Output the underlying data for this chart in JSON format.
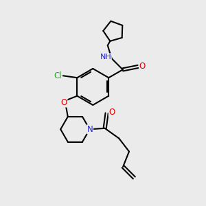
{
  "background_color": "#ebebeb",
  "bond_color": "#000000",
  "atom_colors": {
    "N": "#2222dd",
    "O": "#dd0000",
    "Cl": "#22aa22",
    "H": "#888888",
    "C": "#000000"
  },
  "figsize": [
    3.0,
    3.0
  ],
  "dpi": 100
}
